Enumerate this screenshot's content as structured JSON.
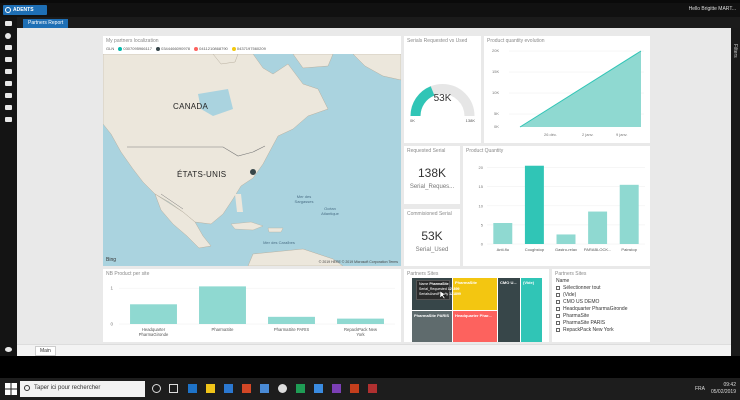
{
  "app": {
    "logo_text": "ADENTS",
    "user_label": "Hello Brigitte MART...",
    "report_tab": "Partners Report",
    "page_tab": "Main",
    "filters_label": "Filters"
  },
  "colors": {
    "teal": "#30c5b6",
    "teal_light": "#8fd9d1",
    "yellow": "#f3c611",
    "red": "#fd625e",
    "dark": "#374649",
    "grey": "#5f6b6d",
    "accent": "#1e6fb5"
  },
  "map": {
    "title": "My partners localization",
    "legend_label": "GLN",
    "legend_items": [
      {
        "id": "0307095966117",
        "color": "#01b8aa"
      },
      {
        "id": "0344466090978",
        "color": "#374649"
      },
      {
        "id": "0411210868790",
        "color": "#fd625e"
      },
      {
        "id": "0437197560209",
        "color": "#f2c80f"
      }
    ],
    "labels": {
      "canada": "CANADA",
      "usa": "ÉTATS-UNIS"
    },
    "seas": {
      "sargasso": "Mer des Sargasses",
      "ocean": "Océan Atlantique",
      "caribbean": "Mer des Caraïbes"
    },
    "copyright": "© 2019 HERE  © 2019 Microsoft Corporation  Terms",
    "bing": "Bing"
  },
  "gauge": {
    "title": "Serials Requested vs Used",
    "value": "53K",
    "min": "0K",
    "max": "138K",
    "fraction": 0.38
  },
  "area_chart": {
    "title": "Product quantity evolution",
    "yticks": [
      "20K",
      "15K",
      "10K",
      "5K",
      "0K"
    ],
    "xticks": [
      "26 déc.",
      "2 janv.",
      "9 janv."
    ]
  },
  "cards": [
    {
      "title": "Requested Serial",
      "value": "138K",
      "label": "Serial_Reques..."
    },
    {
      "title": "Commisioned Serial",
      "value": "53K",
      "label": "Serial_Used"
    }
  ],
  "chart_data": {
    "type": "bar",
    "title": "Product Quantity",
    "categories": [
      "Anti-flu",
      "Coughstop",
      "Gastro-relax",
      "PARABLOCK...",
      "Painstop"
    ],
    "values": [
      5.5,
      20.5,
      2.5,
      8.5,
      15.5
    ],
    "yticks": [
      "20",
      "15",
      "10",
      "5",
      "0"
    ],
    "ylim": [
      0,
      22
    ]
  },
  "nb_chart": {
    "title": "NB Product per site",
    "categories": [
      "Headquarter PharmaGironde",
      "PharmaSite",
      "PharmaSite PARIS",
      "RepackPack New York"
    ],
    "values": [
      0.55,
      1.05,
      0.2,
      0.15
    ],
    "yticks": [
      "1",
      "0"
    ],
    "ylim": [
      0,
      1.2
    ]
  },
  "treemap": {
    "title": "Partners Sites",
    "tiles": [
      {
        "label": "",
        "color": "#374649"
      },
      {
        "label": "PharmaSite",
        "color": "#f3c611"
      },
      {
        "label": "CMO U...",
        "color": "#374649"
      },
      {
        "label": "(Vide)",
        "color": "#30c5b6"
      },
      {
        "label": "PharmaSite PARIS",
        "color": "#5f6b6d"
      },
      {
        "label": "Headquarter Phar...",
        "color": "#fd625e"
      }
    ],
    "tooltip": [
      {
        "k": "Name",
        "v": "PharmaSite"
      },
      {
        "k": "Serial_Requested",
        "v": "121899"
      },
      {
        "k": "SerialsUsedFamily",
        "v": "121899"
      }
    ]
  },
  "slicer": {
    "title": "Partners Sites",
    "header": "Name",
    "items": [
      "Sélectionner tout",
      "(Vide)",
      "CMO US DEMO",
      "Headquarter PharmaGironde",
      "PharmaSite",
      "PharmaSite PARIS",
      "RepackPack New York"
    ]
  },
  "taskbar": {
    "search_placeholder": "Taper ici pour rechercher",
    "time": "09:42",
    "date": "05/02/2019",
    "lang": "FRA"
  }
}
